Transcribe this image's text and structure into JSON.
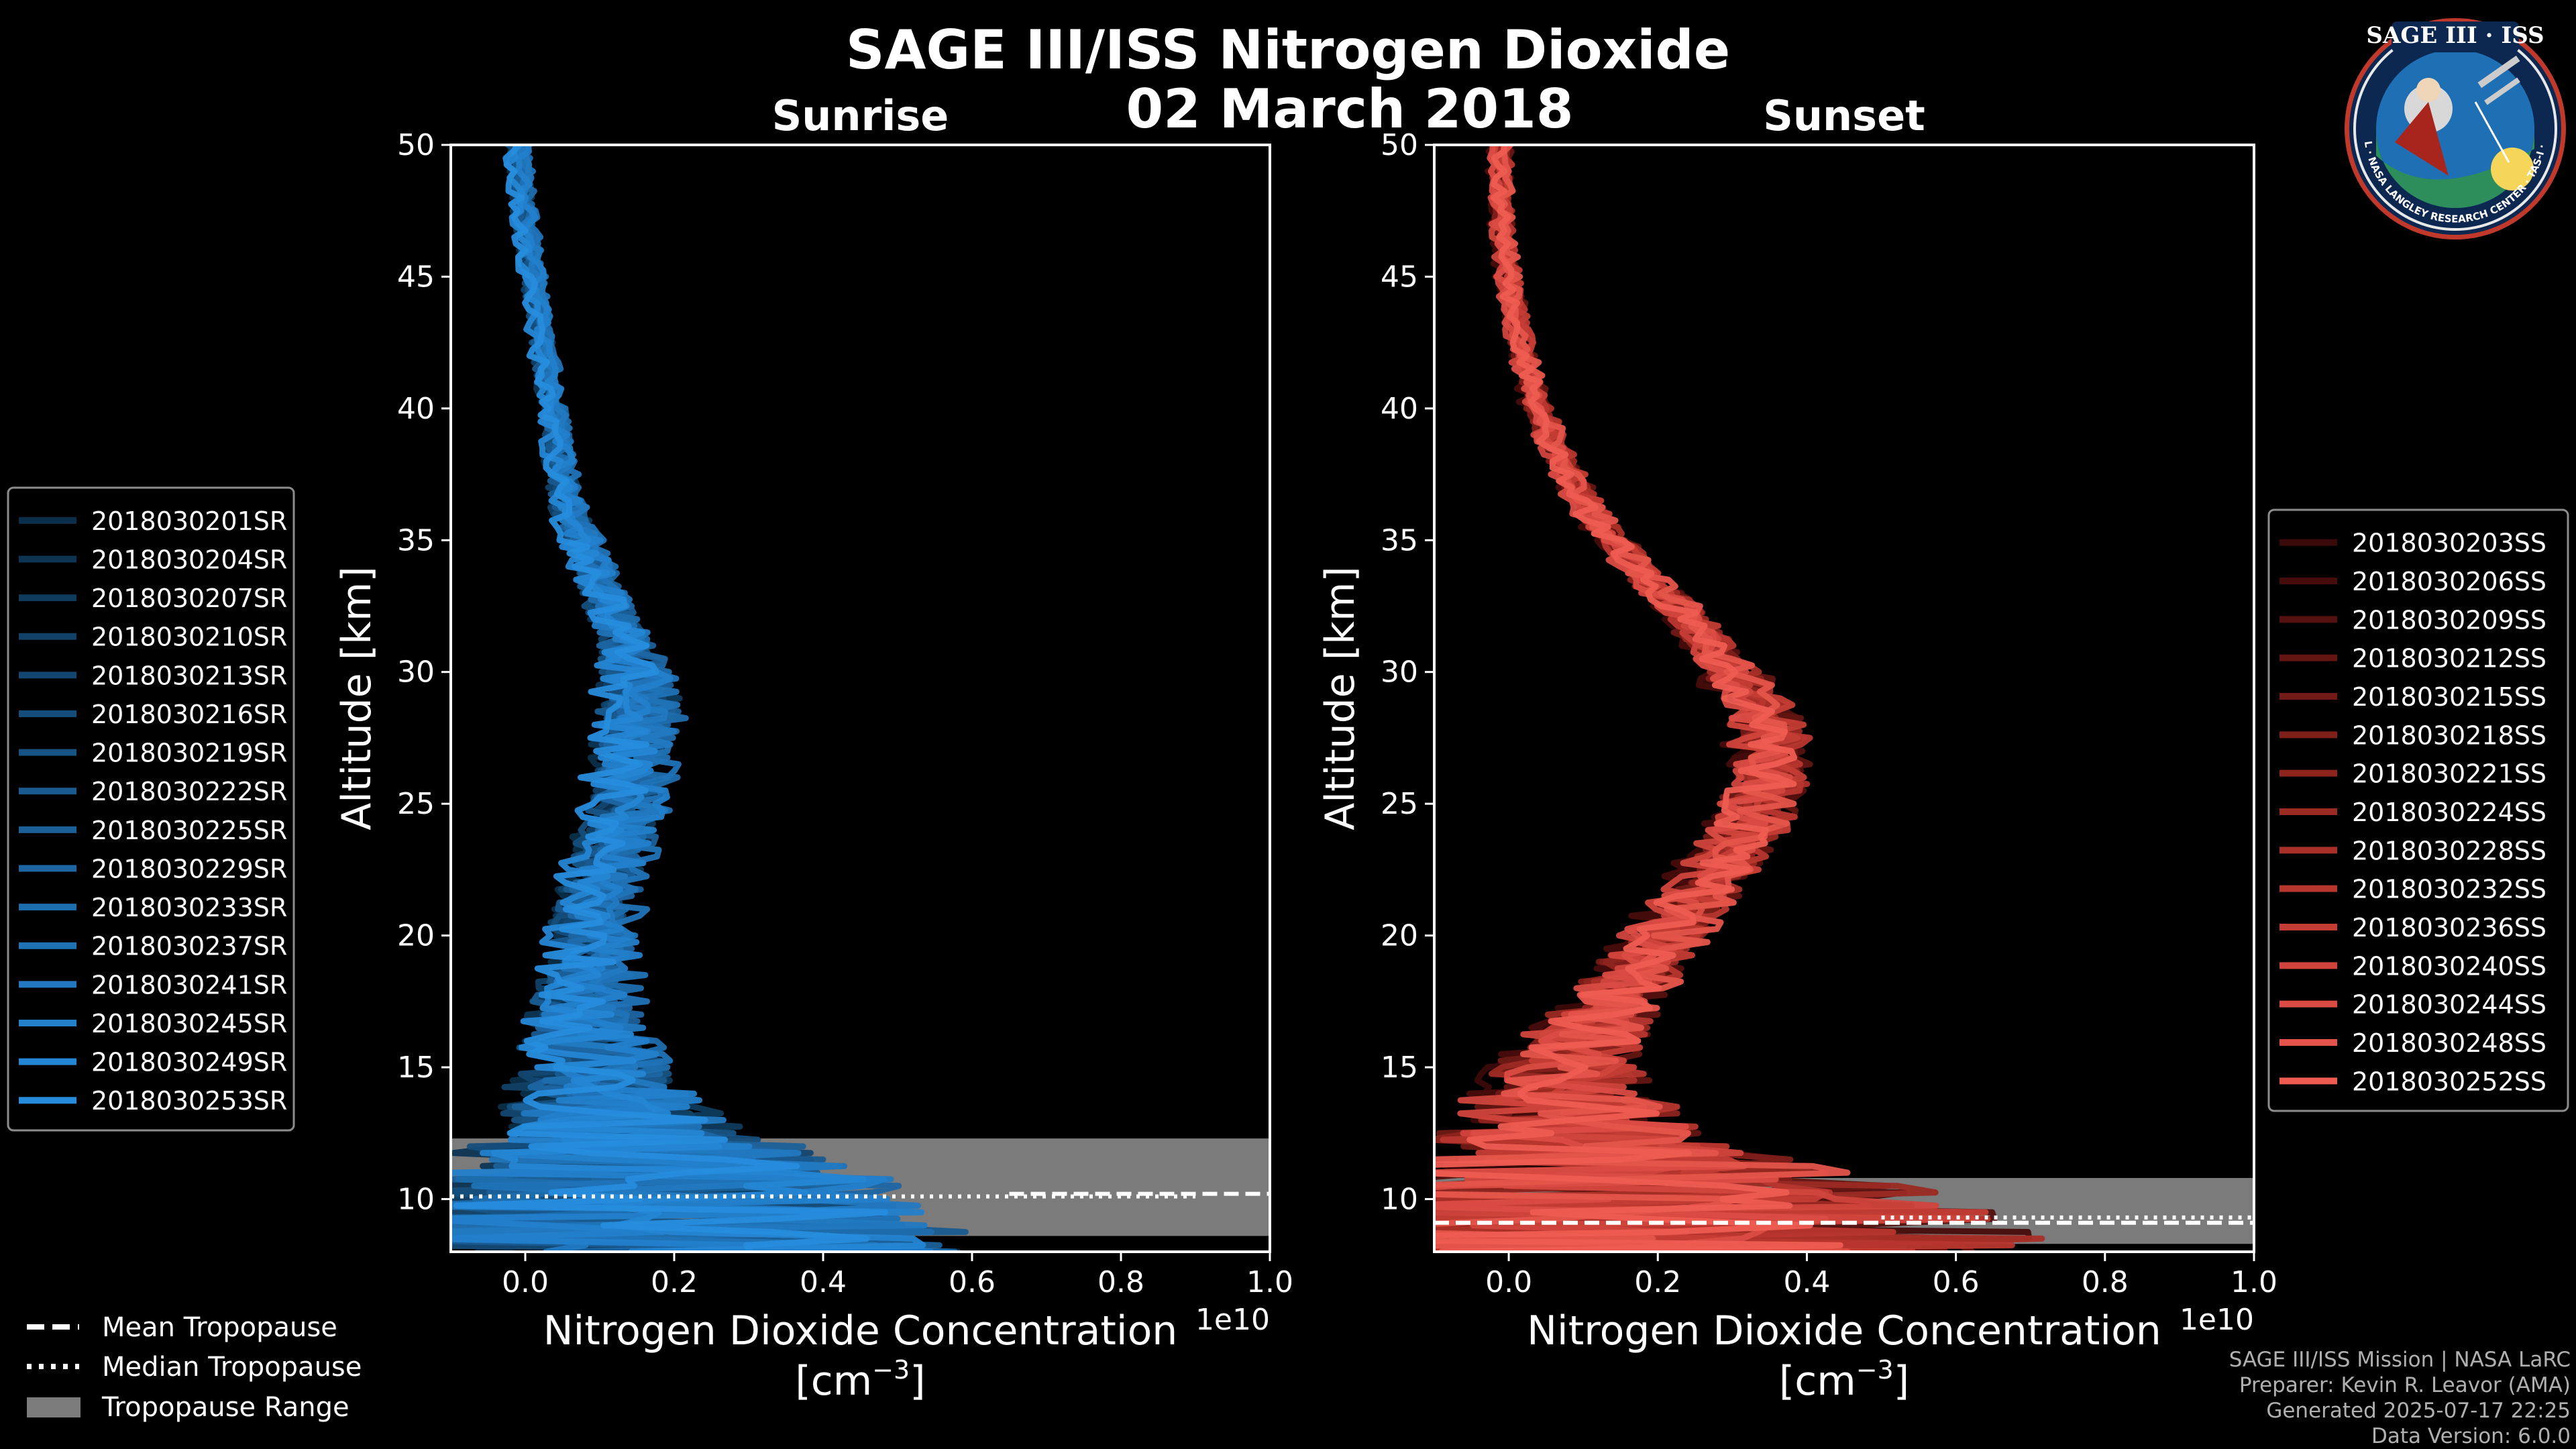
{
  "header": {
    "title": "SAGE III/ISS Nitrogen Dioxide",
    "date": "02 March 2018"
  },
  "credits": [
    "SAGE III/ISS Mission | NASA LaRC",
    "Preparer: Kevin R. Leavor (AMA)",
    "Generated 2025-07-17 22:25",
    "Data Version: 6.0.0"
  ],
  "logo": {
    "title": "SAGE III · ISS",
    "ring_text": "BALL · NASA LANGLEY RESEARCH CENTER · TAS-I · ESA"
  },
  "tropopause_legend": [
    {
      "label": "Mean Tropopause",
      "style": "dashed"
    },
    {
      "label": "Median Tropopause",
      "style": "dotted"
    },
    {
      "label": "Tropopause Range",
      "style": "patch"
    }
  ],
  "chart_data": [
    {
      "type": "line",
      "panel": "sunrise",
      "title": "Sunrise",
      "xlabel": "Nitrogen Dioxide Concentration",
      "xunit_base": "[cm",
      "xunit_exp": "−3",
      "xunit_close": "]",
      "ylabel": "Altitude [km]",
      "x_multiplier": "1e10",
      "xlim": [
        -0.1,
        1.0
      ],
      "ylim": [
        8,
        50
      ],
      "xticks": [
        "0.0",
        "0.2",
        "0.4",
        "0.6",
        "0.8",
        "1.0"
      ],
      "xtick_values": [
        0,
        0.2,
        0.4,
        0.6,
        0.8,
        1.0
      ],
      "yticks": [
        10,
        15,
        20,
        25,
        30,
        35,
        40,
        45,
        50
      ],
      "profile_altitude": [
        9,
        10,
        11,
        12,
        13,
        14,
        15,
        16,
        17,
        18,
        19,
        20,
        22,
        24,
        26,
        28,
        30,
        32,
        34,
        36,
        38,
        40,
        42,
        44,
        46,
        48,
        50
      ],
      "profile_mean": [
        0.15,
        0.15,
        0.16,
        0.14,
        0.12,
        0.1,
        0.09,
        0.085,
        0.08,
        0.08,
        0.085,
        0.09,
        0.1,
        0.12,
        0.14,
        0.15,
        0.15,
        0.12,
        0.09,
        0.06,
        0.045,
        0.035,
        0.025,
        0.015,
        0.005,
        -0.005,
        -0.01
      ],
      "profile_noise": [
        0.45,
        0.38,
        0.3,
        0.22,
        0.16,
        0.12,
        0.1,
        0.08,
        0.07,
        0.06,
        0.055,
        0.05,
        0.045,
        0.045,
        0.05,
        0.05,
        0.045,
        0.035,
        0.025,
        0.02,
        0.015,
        0.013,
        0.012,
        0.01,
        0.01,
        0.01,
        0.01
      ],
      "tropopause": {
        "mean": 10.2,
        "median": 10.1,
        "min": 8.6,
        "max": 12.3,
        "mean_x": [
          0.65,
          1.0
        ],
        "median_x": [
          -0.1,
          0.9
        ]
      },
      "legend_position": "left",
      "series": [
        {
          "name": "2018030201SR",
          "color": "#0b2f4a"
        },
        {
          "name": "2018030204SR",
          "color": "#0d3553"
        },
        {
          "name": "2018030207SR",
          "color": "#0f3b5d"
        },
        {
          "name": "2018030210SR",
          "color": "#114167"
        },
        {
          "name": "2018030213SR",
          "color": "#134771"
        },
        {
          "name": "2018030216SR",
          "color": "#154e7b"
        },
        {
          "name": "2018030219SR",
          "color": "#175485"
        },
        {
          "name": "2018030222SR",
          "color": "#195a8f"
        },
        {
          "name": "2018030225SR",
          "color": "#1b6099"
        },
        {
          "name": "2018030229SR",
          "color": "#1d66a3"
        },
        {
          "name": "2018030233SR",
          "color": "#1e6dad"
        },
        {
          "name": "2018030237SR",
          "color": "#2073b7"
        },
        {
          "name": "2018030241SR",
          "color": "#2279c1"
        },
        {
          "name": "2018030245SR",
          "color": "#2380cb"
        },
        {
          "name": "2018030249SR",
          "color": "#2586d4"
        },
        {
          "name": "2018030253SR",
          "color": "#278cdc"
        }
      ]
    },
    {
      "type": "line",
      "panel": "sunset",
      "title": "Sunset",
      "xlabel": "Nitrogen Dioxide Concentration",
      "xunit_base": "[cm",
      "xunit_exp": "−3",
      "xunit_close": "]",
      "ylabel": "Altitude [km]",
      "x_multiplier": "1e10",
      "xlim": [
        -0.1,
        1.0
      ],
      "ylim": [
        8,
        50
      ],
      "xticks": [
        "0.0",
        "0.2",
        "0.4",
        "0.6",
        "0.8",
        "1.0"
      ],
      "xtick_values": [
        0,
        0.2,
        0.4,
        0.6,
        0.8,
        1.0
      ],
      "yticks": [
        10,
        15,
        20,
        25,
        30,
        35,
        40,
        45,
        50
      ],
      "profile_altitude": [
        9,
        10,
        11,
        12,
        13,
        14,
        15,
        16,
        17,
        18,
        19,
        20,
        22,
        24,
        26,
        28,
        30,
        32,
        34,
        36,
        38,
        40,
        42,
        44,
        46,
        48,
        50
      ],
      "profile_mean": [
        0.18,
        0.16,
        0.14,
        0.1,
        0.08,
        0.07,
        0.08,
        0.1,
        0.12,
        0.15,
        0.18,
        0.21,
        0.27,
        0.32,
        0.35,
        0.35,
        0.3,
        0.24,
        0.17,
        0.11,
        0.07,
        0.04,
        0.02,
        0.005,
        -0.005,
        -0.01,
        -0.01
      ],
      "profile_noise": [
        0.55,
        0.45,
        0.32,
        0.22,
        0.16,
        0.12,
        0.1,
        0.08,
        0.07,
        0.06,
        0.055,
        0.05,
        0.045,
        0.045,
        0.045,
        0.04,
        0.035,
        0.03,
        0.025,
        0.02,
        0.018,
        0.015,
        0.013,
        0.012,
        0.01,
        0.01,
        0.01
      ],
      "tropopause": {
        "mean": 9.1,
        "median": 9.3,
        "min": 8.3,
        "max": 10.8,
        "mean_x": [
          -0.1,
          1.0
        ],
        "median_x": [
          0.5,
          1.0
        ]
      },
      "legend_position": "right",
      "series": [
        {
          "name": "2018030203SS",
          "color": "#3a0a0a"
        },
        {
          "name": "2018030206SS",
          "color": "#470d0c"
        },
        {
          "name": "2018030209SS",
          "color": "#55110f"
        },
        {
          "name": "2018030212SS",
          "color": "#631512"
        },
        {
          "name": "2018030215SS",
          "color": "#711a16"
        },
        {
          "name": "2018030218SS",
          "color": "#7f1f1a"
        },
        {
          "name": "2018030221SS",
          "color": "#8d241e"
        },
        {
          "name": "2018030224SS",
          "color": "#9b2a23"
        },
        {
          "name": "2018030228SS",
          "color": "#a93028"
        },
        {
          "name": "2018030232SS",
          "color": "#b7362e"
        },
        {
          "name": "2018030236SS",
          "color": "#c43d35"
        },
        {
          "name": "2018030240SS",
          "color": "#d0443c"
        },
        {
          "name": "2018030244SS",
          "color": "#da4c43"
        },
        {
          "name": "2018030248SS",
          "color": "#e4544a"
        },
        {
          "name": "2018030252SS",
          "color": "#ee5c51"
        }
      ]
    }
  ]
}
